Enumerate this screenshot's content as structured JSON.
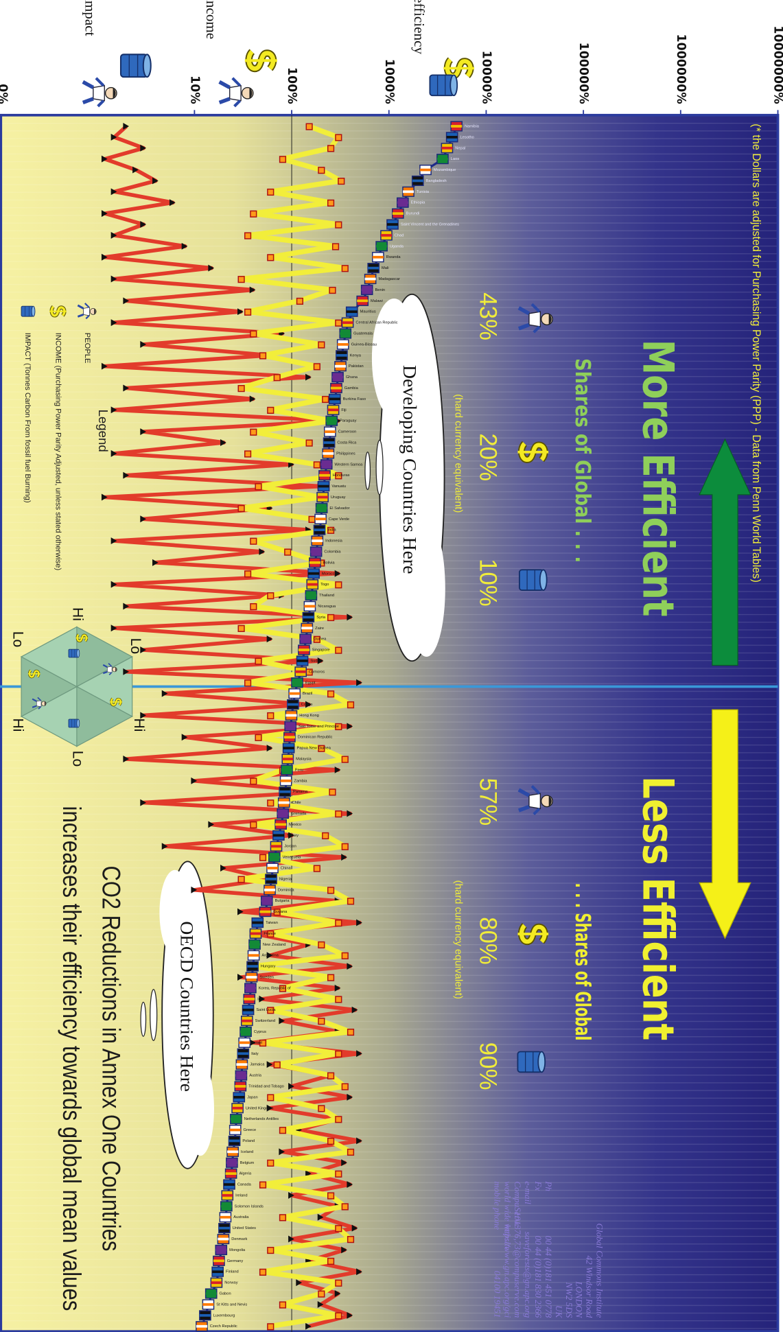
{
  "chart_data": {
    "type": "line",
    "xlim": [
      0.1,
      10000000
    ],
    "xticks": [
      {
        "value": 10,
        "label": "10%"
      },
      {
        "value": 100,
        "label": "100%"
      },
      {
        "value": 1000,
        "label": "1000%"
      },
      {
        "value": 10000,
        "label": "10000%"
      },
      {
        "value": 100000,
        "label": "100000%"
      },
      {
        "value": 1000000,
        "label": "1000000%"
      },
      {
        "value": 10000000,
        "label": "10000000%"
      }
    ],
    "x_edge_label": "0%",
    "log_scale": true,
    "reference_line": 100,
    "categories": [
      "Namibia",
      "Lesotho",
      "Nepal",
      "Laos",
      "Mozambique",
      "Bangladesh",
      "Tunisia",
      "Ethiopia",
      "Burundi",
      "Saint Vincent and the Grenadines",
      "Chad",
      "Uganda",
      "Rwanda",
      "Mali",
      "Madagascar",
      "Benin",
      "Malawi",
      "Mauritius",
      "Central African Republic",
      "Guatemala",
      "Guinea-Bissau",
      "Kenya",
      "Pakistan",
      "Ghana",
      "Gambia",
      "Burkina Faso",
      "Fiji",
      "Paraguay",
      "Cameroon",
      "Costa Rica",
      "Philippines",
      "Western Samoa",
      "Honduras",
      "Vanuatu",
      "Uruguay",
      "El Salvador",
      "Cape Verde",
      "India",
      "Indonesia",
      "Colombia",
      "Bolivia",
      "Morocco",
      "Togo",
      "Thailand",
      "Nicaragua",
      "Syria",
      "Zaire",
      "Guinea",
      "Singapore",
      "Sudan",
      "Comoros",
      "Egypt",
      "Brazil",
      "Congo",
      "Hong Kong",
      "Sao Tome and Principe",
      "Dominican Republic",
      "Papua New Guinea",
      "Malaysia",
      "Peru",
      "Zambia",
      "Panama",
      "Chile",
      "Grenada",
      "Mexico",
      "Turkey",
      "Jordan",
      "Venezuela",
      "China",
      "Nigeria",
      "Dominica",
      "Bulgaria",
      "Guyana",
      "Taiwan",
      "France",
      "New Zealand",
      "Argentina",
      "Hungary",
      "Sweden",
      "Korea, Republic of",
      "Iran",
      "Saint Lucia",
      "Switzerland",
      "Cyprus",
      "Israel",
      "Italy",
      "Jamaica",
      "Austria",
      "Trinidad and Tobago",
      "Japan",
      "United Kingdom",
      "Netherlands Antilles",
      "Greece",
      "Poland",
      "Iceland",
      "Belgium",
      "Algeria",
      "Canada",
      "Ireland",
      "Solomon Islands",
      "Australia",
      "United States",
      "Denmark",
      "Mongolia",
      "Germany",
      "Finland",
      "Norway",
      "Gabon",
      "St Kitts and Nevis",
      "Luxembourg",
      "Czech Republic"
    ],
    "series": [
      {
        "name": "efficiency",
        "color": "#1f2a8a",
        "values": [
          5000,
          4500,
          4000,
          3600,
          2400,
          2000,
          1600,
          1400,
          1250,
          1100,
          950,
          850,
          780,
          700,
          650,
          600,
          540,
          420,
          380,
          360,
          340,
          330,
          320,
          300,
          290,
          280,
          270,
          260,
          250,
          245,
          240,
          230,
          220,
          215,
          210,
          205,
          200,
          195,
          185,
          180,
          175,
          170,
          165,
          160,
          155,
          150,
          145,
          140,
          135,
          130,
          125,
          115,
          108,
          104,
          100,
          98,
          96,
          94,
          92,
          90,
          88,
          86,
          84,
          82,
          78,
          74,
          70,
          67,
          64,
          62,
          60,
          56,
          54,
          45,
          43,
          42,
          41,
          40,
          39,
          38,
          37,
          36,
          35,
          34,
          33,
          32,
          31,
          30.5,
          30,
          29,
          28,
          27,
          26.5,
          26,
          25,
          24.5,
          24,
          23,
          22,
          21.5,
          21,
          20.5,
          20,
          19,
          18,
          17.5,
          17,
          15,
          14,
          13,
          12
        ]
      },
      {
        "name": "income",
        "color": "#f2ee3a",
        "values": [
          150,
          300,
          250,
          80,
          200,
          320,
          60,
          250,
          40,
          300,
          35,
          280,
          60,
          350,
          30,
          260,
          120,
          35,
          300,
          40,
          200,
          50,
          180,
          70,
          30,
          220,
          60,
          260,
          40,
          150,
          35,
          180,
          300,
          45,
          200,
          30,
          160,
          250,
          40,
          90,
          200,
          35,
          300,
          60,
          40,
          250,
          30,
          180,
          300,
          45,
          150,
          35,
          250,
          400,
          60,
          300,
          45,
          200,
          350,
          80,
          40,
          260,
          60,
          300,
          40,
          220,
          350,
          50,
          180,
          30,
          250,
          400,
          70,
          300,
          60,
          200,
          350,
          40,
          250,
          80,
          300,
          60,
          200,
          400,
          50,
          300,
          70,
          250,
          350,
          60,
          200,
          300,
          80,
          250,
          400,
          60,
          300,
          50,
          250,
          350,
          80,
          300,
          400,
          60,
          250,
          50,
          300,
          200,
          80,
          300,
          60
        ]
      },
      {
        "name": "impact",
        "color": "#e23b2b",
        "values": [
          2,
          1.5,
          3,
          1.2,
          2.5,
          4,
          1.5,
          6,
          1.2,
          3,
          1.5,
          8,
          1.2,
          15,
          1.5,
          40,
          2,
          30,
          1.5,
          80,
          3,
          60,
          1.2,
          150,
          2,
          40,
          1.5,
          300,
          3,
          20,
          1.5,
          100,
          2,
          200,
          1.2,
          60,
          3,
          150,
          1.5,
          50,
          4,
          300,
          1.5,
          80,
          2,
          400,
          1.5,
          60,
          3,
          200,
          2,
          500,
          5,
          150,
          3,
          400,
          8,
          60,
          2,
          300,
          10,
          200,
          3,
          400,
          15,
          100,
          5,
          350,
          20,
          60,
          10,
          300,
          30,
          500,
          40,
          150,
          60,
          400,
          30,
          300,
          50,
          450,
          80,
          300,
          40,
          500,
          60,
          250,
          100,
          400,
          60,
          300,
          120,
          500,
          80,
          350,
          150,
          400,
          100,
          300,
          200,
          450,
          100,
          350,
          150,
          500,
          120,
          300,
          200,
          400,
          150
        ]
      }
    ]
  },
  "note": "(* the Dollars are adjusted for Purchasing Power Parity (PPP) - Data from Penn World Tables)",
  "more_efficient": "More Efficient",
  "less_efficient": "Less Efficient",
  "shares": {
    "developing_title": "Shares of Global . . .",
    "developing": [
      "43%",
      "20%",
      "10%"
    ],
    "oecd_title": ". . . Shares of Global",
    "oecd": [
      "57%",
      "80%",
      "90%"
    ],
    "currency_note": "(hard currency equivalent)"
  },
  "clouds": {
    "developing": "Developing Countries Here",
    "oecd": "OECD Countries Here"
  },
  "legend": {
    "title": "Legend",
    "people": "PEOPLE",
    "income": "INCOME (Purchasing Power Parity Adjusted, unless stated otherwise)",
    "impact": "IMPACT (Tonnes Carbon From fossil fuel Burning)"
  },
  "hexagon_labels": [
    "Hi",
    "Lo",
    "Lo",
    "Hi",
    "Hi",
    "Lo"
  ],
  "headline": [
    "CO2 Reductions in Annex One Countries",
    "increases their efficiency towards global mean values"
  ],
  "contact": {
    "lines": [
      "Global Commons Institute",
      "42 Windsor Road",
      "LONDON",
      "NW2 5DS",
      "UK"
    ],
    "rows": [
      [
        "Ph",
        "00 44 (0)181 451 0778"
      ],
      [
        "Fx",
        "00 44 (0)181 830 2366"
      ],
      [
        "e-mail",
        "saveforests@gn.apc.org"
      ],
      [
        "CompuServe",
        "101376,73@compuserve.com"
      ],
      [
        "world wide website",
        "http://www.gn.apc.org/gci"
      ],
      [
        "mobile phone",
        "04100 19451"
      ]
    ]
  }
}
